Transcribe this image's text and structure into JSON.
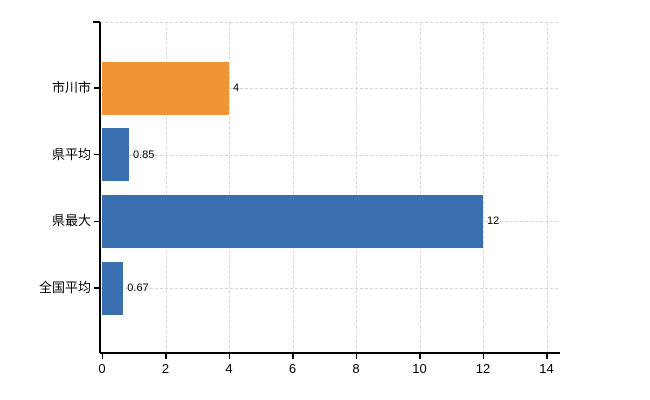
{
  "chart_data": {
    "type": "bar",
    "orientation": "horizontal",
    "title": "",
    "xlabel": "",
    "ylabel": "",
    "categories": [
      "市川市",
      "県平均",
      "県最大",
      "全国平均"
    ],
    "values": [
      4,
      0.85,
      12,
      0.67
    ],
    "value_labels": [
      "4",
      "0.85",
      "12",
      "0.67"
    ],
    "bar_colors": [
      "#F09437",
      "#3A6FB0",
      "#3A6FB0",
      "#3A6FB0"
    ],
    "x_ticks": [
      0,
      2,
      4,
      6,
      8,
      10,
      12,
      14
    ],
    "xlim": [
      0,
      14.43
    ],
    "grid": "dashed",
    "legend_visible": false
  },
  "colors": {
    "bar_orange": "#F09437",
    "bar_blue": "#3A6FB0",
    "gridline": "#D6D6D6",
    "axis": "#000000",
    "text": "#000000",
    "background": "#FFFFFF"
  }
}
